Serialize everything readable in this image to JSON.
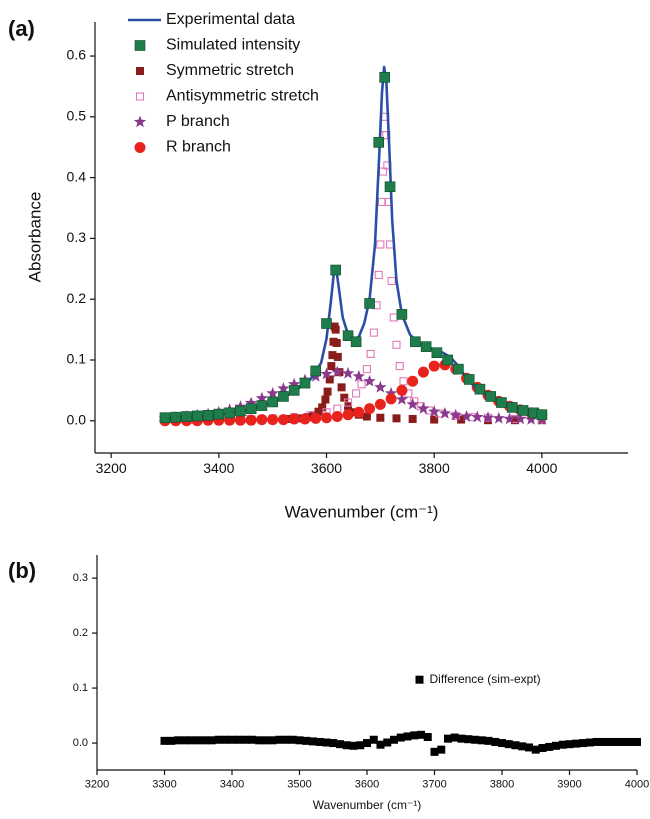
{
  "chart_data": [
    {
      "type": "scatter",
      "panel_label": "(a)",
      "x_label": "Wavenumber (cm⁻¹)",
      "y_label": "Absorbance",
      "xlim": [
        3170,
        4160
      ],
      "ylim": [
        -0.053,
        0.656
      ],
      "xticks": [
        3200,
        3400,
        3600,
        3800,
        4000
      ],
      "yticks": [
        {
          "value": 0,
          "label": "0.0"
        },
        0.1,
        0.2,
        0.3,
        0.4,
        0.5,
        0.6
      ],
      "legend_position": "upper left",
      "series": [
        {
          "name": "Experimental data",
          "color": "#2b4fa6",
          "marker": "line",
          "x": [
            3300,
            3350,
            3400,
            3450,
            3500,
            3540,
            3570,
            3590,
            3600,
            3608,
            3614,
            3618,
            3622,
            3630,
            3640,
            3650,
            3660,
            3670,
            3680,
            3690,
            3698,
            3703,
            3707,
            3711,
            3716,
            3722,
            3730,
            3740,
            3755,
            3770,
            3790,
            3810,
            3830,
            3845,
            3860,
            3880,
            3900,
            3930,
            3960,
            4000
          ],
          "values": [
            0.004,
            0.006,
            0.01,
            0.017,
            0.03,
            0.048,
            0.068,
            0.095,
            0.135,
            0.195,
            0.245,
            0.25,
            0.225,
            0.17,
            0.142,
            0.133,
            0.138,
            0.16,
            0.2,
            0.29,
            0.44,
            0.54,
            0.582,
            0.56,
            0.46,
            0.33,
            0.23,
            0.175,
            0.142,
            0.128,
            0.12,
            0.115,
            0.105,
            0.09,
            0.07,
            0.052,
            0.04,
            0.027,
            0.018,
            0.01
          ]
        },
        {
          "name": "Simulated intensity",
          "color": "#1e7d4a",
          "marker": "square",
          "x": [
            3300,
            3320,
            3340,
            3360,
            3380,
            3400,
            3420,
            3440,
            3460,
            3480,
            3500,
            3520,
            3540,
            3560,
            3580,
            3600,
            3617,
            3640,
            3655,
            3680,
            3697,
            3708,
            3718,
            3740,
            3765,
            3785,
            3805,
            3825,
            3845,
            3865,
            3885,
            3905,
            3925,
            3945,
            3965,
            3985,
            4000
          ],
          "values": [
            0.005,
            0.006,
            0.007,
            0.008,
            0.009,
            0.011,
            0.013,
            0.016,
            0.02,
            0.025,
            0.031,
            0.04,
            0.05,
            0.062,
            0.082,
            0.16,
            0.248,
            0.14,
            0.13,
            0.193,
            0.458,
            0.565,
            0.385,
            0.175,
            0.13,
            0.122,
            0.112,
            0.1,
            0.085,
            0.068,
            0.052,
            0.04,
            0.03,
            0.022,
            0.017,
            0.013,
            0.01
          ]
        },
        {
          "name": "Symmetric stretch",
          "color": "#8b1c1c",
          "marker": "square-small",
          "x": [
            3300,
            3340,
            3380,
            3420,
            3460,
            3500,
            3530,
            3550,
            3565,
            3575,
            3585,
            3592,
            3598,
            3602,
            3606,
            3609,
            3611,
            3613,
            3615,
            3617,
            3619,
            3621,
            3624,
            3628,
            3633,
            3640,
            3650,
            3660,
            3675,
            3700,
            3730,
            3760,
            3800,
            3850,
            3900,
            3950,
            4000
          ],
          "values": [
            0,
            0.001,
            0.001,
            0.001,
            0.002,
            0.002,
            0.003,
            0.004,
            0.006,
            0.009,
            0.015,
            0.022,
            0.035,
            0.048,
            0.068,
            0.09,
            0.108,
            0.13,
            0.155,
            0.15,
            0.128,
            0.105,
            0.08,
            0.055,
            0.038,
            0.024,
            0.014,
            0.01,
            0.007,
            0.005,
            0.004,
            0.003,
            0.002,
            0.002,
            0.001,
            0.001,
            0.001
          ]
        },
        {
          "name": "Antisymmetric stretch",
          "color": "#e07ab8",
          "marker": "open-square",
          "x": [
            3300,
            3350,
            3400,
            3450,
            3500,
            3540,
            3570,
            3600,
            3620,
            3640,
            3655,
            3665,
            3675,
            3682,
            3688,
            3693,
            3697,
            3700,
            3703,
            3705,
            3707,
            3709,
            3711,
            3713,
            3715,
            3718,
            3721,
            3725,
            3730,
            3736,
            3743,
            3752,
            3763,
            3775,
            3790,
            3810,
            3840,
            3870,
            3900,
            3950,
            4000
          ],
          "values": [
            0.001,
            0.001,
            0.002,
            0.003,
            0.004,
            0.006,
            0.009,
            0.014,
            0.02,
            0.03,
            0.045,
            0.06,
            0.085,
            0.11,
            0.145,
            0.19,
            0.24,
            0.29,
            0.36,
            0.41,
            0.47,
            0.5,
            0.47,
            0.42,
            0.36,
            0.29,
            0.23,
            0.17,
            0.125,
            0.09,
            0.065,
            0.045,
            0.032,
            0.024,
            0.017,
            0.012,
            0.008,
            0.006,
            0.005,
            0.003,
            0.002
          ]
        },
        {
          "name": "P branch",
          "color": "#8a3a8e",
          "marker": "star",
          "x": [
            3300,
            3320,
            3340,
            3360,
            3380,
            3400,
            3420,
            3440,
            3460,
            3480,
            3500,
            3520,
            3540,
            3560,
            3580,
            3600,
            3620,
            3640,
            3660,
            3680,
            3700,
            3720,
            3740,
            3760,
            3780,
            3800,
            3820,
            3840,
            3860,
            3880,
            3900,
            3920,
            3940,
            3960,
            3980,
            4000
          ],
          "values": [
            0.004,
            0.005,
            0.007,
            0.009,
            0.011,
            0.014,
            0.018,
            0.023,
            0.029,
            0.037,
            0.045,
            0.053,
            0.06,
            0.067,
            0.073,
            0.077,
            0.08,
            0.078,
            0.073,
            0.065,
            0.055,
            0.045,
            0.035,
            0.027,
            0.02,
            0.015,
            0.012,
            0.009,
            0.007,
            0.006,
            0.005,
            0.004,
            0.003,
            0.003,
            0.002,
            0.002
          ]
        },
        {
          "name": "R branch",
          "color": "#e8231e",
          "marker": "circle",
          "x": [
            3300,
            3320,
            3340,
            3360,
            3380,
            3400,
            3420,
            3440,
            3460,
            3480,
            3500,
            3520,
            3540,
            3560,
            3580,
            3600,
            3620,
            3640,
            3660,
            3680,
            3700,
            3720,
            3740,
            3760,
            3780,
            3800,
            3820,
            3840,
            3860,
            3880,
            3900,
            3920,
            3940,
            3960,
            3980,
            4000
          ],
          "values": [
            0,
            0,
            0,
            0,
            0.001,
            0.001,
            0.001,
            0.001,
            0.001,
            0.002,
            0.002,
            0.002,
            0.003,
            0.003,
            0.004,
            0.005,
            0.007,
            0.01,
            0.014,
            0.02,
            0.027,
            0.036,
            0.05,
            0.065,
            0.08,
            0.09,
            0.092,
            0.085,
            0.07,
            0.055,
            0.042,
            0.032,
            0.024,
            0.018,
            0.013,
            0.01
          ]
        }
      ]
    },
    {
      "type": "scatter",
      "panel_label": "(b)",
      "x_label": "Wavenumber (cm⁻¹)",
      "xlim": [
        3200,
        4000
      ],
      "ylim": [
        -0.049,
        0.342
      ],
      "xticks": [
        3200,
        3300,
        3400,
        3500,
        3600,
        3700,
        3800,
        3900,
        4000
      ],
      "yticks": [
        {
          "value": 0,
          "label": "0.0"
        },
        0.1,
        0.2,
        0.3
      ],
      "legend_position": "center",
      "series": [
        {
          "name": "Difference (sim-expt)",
          "color": "#000000",
          "marker": "square",
          "x": [
            3300,
            3310,
            3320,
            3330,
            3340,
            3350,
            3360,
            3370,
            3380,
            3390,
            3400,
            3410,
            3420,
            3430,
            3440,
            3450,
            3460,
            3470,
            3480,
            3490,
            3500,
            3510,
            3520,
            3530,
            3540,
            3550,
            3560,
            3570,
            3580,
            3590,
            3600,
            3610,
            3620,
            3630,
            3640,
            3650,
            3660,
            3670,
            3680,
            3690,
            3700,
            3710,
            3720,
            3730,
            3740,
            3750,
            3760,
            3770,
            3780,
            3790,
            3800,
            3810,
            3820,
            3830,
            3840,
            3850,
            3860,
            3870,
            3880,
            3890,
            3900,
            3910,
            3920,
            3930,
            3940,
            3950,
            3960,
            3970,
            3980,
            3990,
            4000
          ],
          "values": [
            0.004,
            0.004,
            0.005,
            0.005,
            0.005,
            0.005,
            0.005,
            0.005,
            0.006,
            0.006,
            0.006,
            0.006,
            0.006,
            0.006,
            0.005,
            0.005,
            0.005,
            0.006,
            0.006,
            0.006,
            0.005,
            0.004,
            0.003,
            0.002,
            0.001,
            0,
            -0.002,
            -0.004,
            -0.005,
            -0.004,
            0,
            0.006,
            -0.003,
            0.001,
            0.006,
            0.01,
            0.012,
            0.014,
            0.015,
            0.011,
            -0.016,
            -0.012,
            0.008,
            0.01,
            0.008,
            0.007,
            0.006,
            0.005,
            0.004,
            0.002,
            0,
            -0.002,
            -0.004,
            -0.006,
            -0.008,
            -0.012,
            -0.009,
            -0.007,
            -0.005,
            -0.003,
            -0.002,
            -0.001,
            0,
            0.001,
            0.002,
            0.002,
            0.002,
            0.002,
            0.002,
            0.002,
            0.002
          ]
        }
      ]
    }
  ]
}
